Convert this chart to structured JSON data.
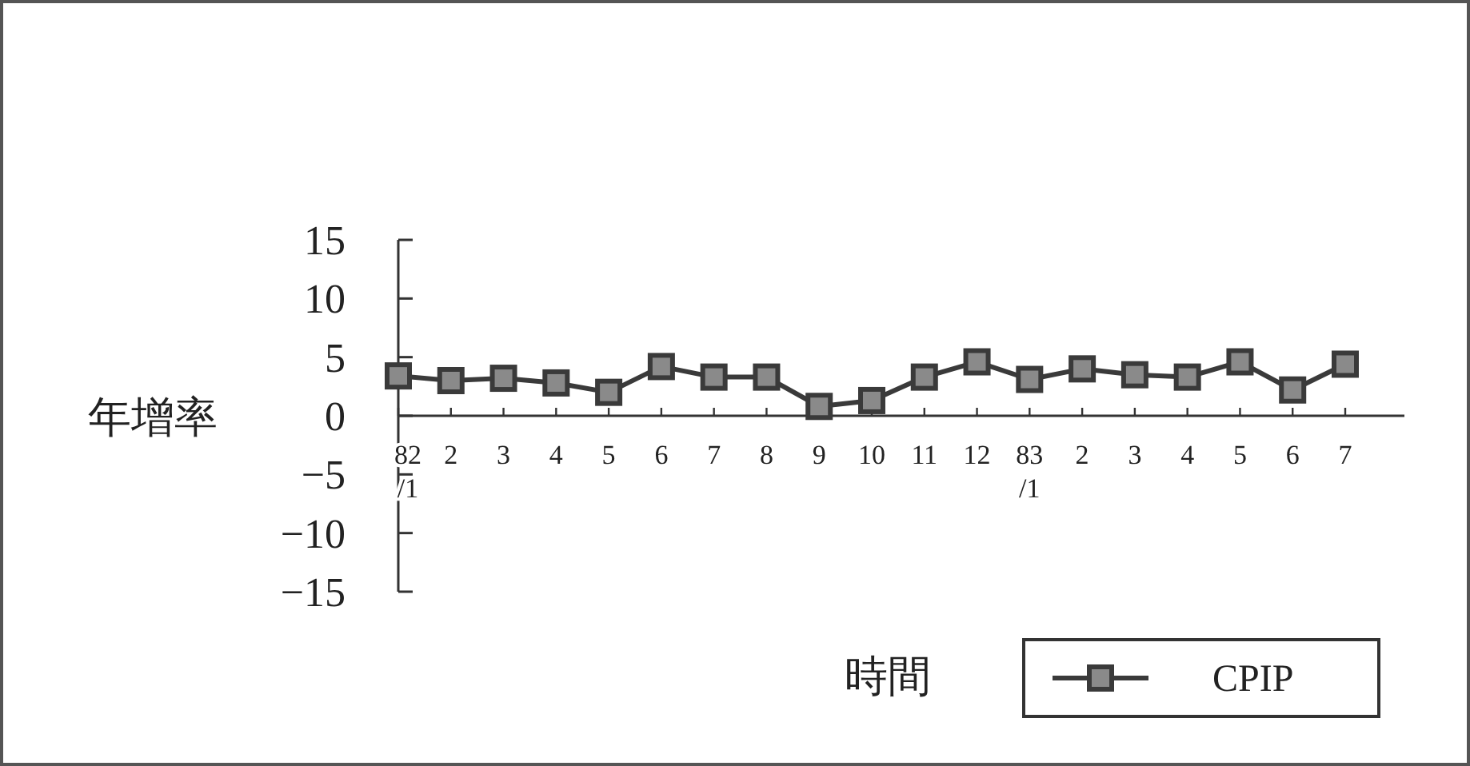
{
  "chart_data": {
    "type": "line",
    "xlabel": "時間",
    "ylabel": "年增率",
    "categories": [
      "82/1",
      "2",
      "3",
      "4",
      "5",
      "6",
      "7",
      "8",
      "9",
      "10",
      "11",
      "12",
      "83/1",
      "2",
      "3",
      "4",
      "5",
      "6",
      "7"
    ],
    "series": [
      {
        "name": "CPIP",
        "color": "#3a3a3a",
        "values": [
          3.4,
          3.0,
          3.2,
          2.8,
          2.0,
          4.2,
          3.3,
          3.3,
          0.8,
          1.3,
          3.3,
          4.6,
          3.1,
          4.0,
          3.5,
          3.3,
          4.6,
          2.2,
          4.4
        ]
      }
    ],
    "ylim": [
      -15,
      15
    ],
    "yticks": [
      15,
      10,
      5,
      0,
      -5,
      -10,
      -15
    ],
    "grid": false,
    "legend": "bottom right",
    "marker": "square",
    "line_style": "solid"
  }
}
